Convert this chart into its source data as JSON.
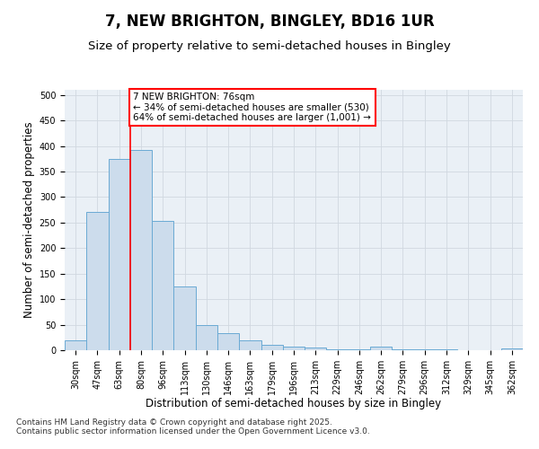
{
  "title": "7, NEW BRIGHTON, BINGLEY, BD16 1UR",
  "subtitle": "Size of property relative to semi-detached houses in Bingley",
  "xlabel": "Distribution of semi-detached houses by size in Bingley",
  "ylabel": "Number of semi-detached properties",
  "categories": [
    "30sqm",
    "47sqm",
    "63sqm",
    "80sqm",
    "96sqm",
    "113sqm",
    "130sqm",
    "146sqm",
    "163sqm",
    "179sqm",
    "196sqm",
    "213sqm",
    "229sqm",
    "246sqm",
    "262sqm",
    "279sqm",
    "296sqm",
    "312sqm",
    "329sqm",
    "345sqm",
    "362sqm"
  ],
  "values": [
    20,
    270,
    375,
    393,
    253,
    125,
    50,
    33,
    20,
    10,
    7,
    5,
    2,
    1,
    7,
    1,
    1,
    1,
    0,
    0,
    3
  ],
  "bar_color": "#ccdcec",
  "bar_edge_color": "#6aaad4",
  "grid_color": "#d0d8e0",
  "background_color": "#eaf0f6",
  "vline_x": 2.5,
  "vline_color": "red",
  "annotation_text": "7 NEW BRIGHTON: 76sqm\n← 34% of semi-detached houses are smaller (530)\n64% of semi-detached houses are larger (1,001) →",
  "annotation_box_color": "red",
  "ylim": [
    0,
    510
  ],
  "yticks": [
    0,
    50,
    100,
    150,
    200,
    250,
    300,
    350,
    400,
    450,
    500
  ],
  "footnote": "Contains HM Land Registry data © Crown copyright and database right 2025.\nContains public sector information licensed under the Open Government Licence v3.0.",
  "title_fontsize": 12,
  "subtitle_fontsize": 9.5,
  "label_fontsize": 8.5,
  "tick_fontsize": 7,
  "annotation_fontsize": 7.5,
  "footnote_fontsize": 6.5
}
